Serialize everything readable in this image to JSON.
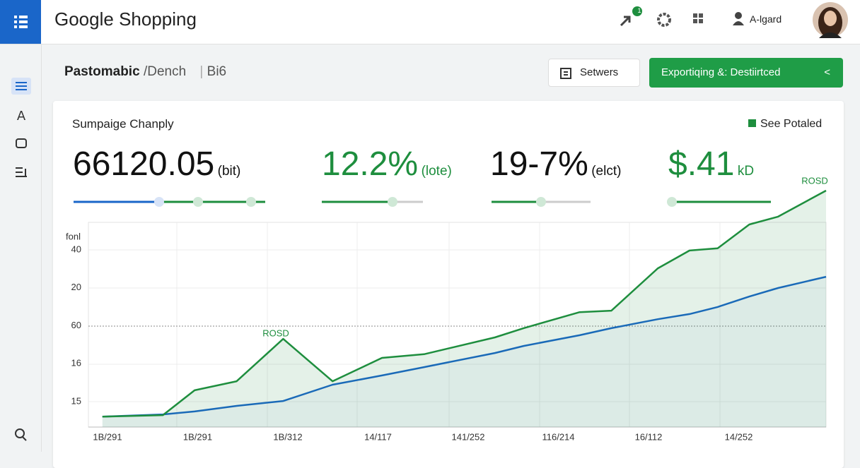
{
  "header": {
    "title": "Google Shopping",
    "badge": "1",
    "user": "A-lgard"
  },
  "breadcrumb": {
    "title": "Pastomabic",
    "sub": "/Dench",
    "tag": "Bi6"
  },
  "buttons": {
    "secondary": "Setwers",
    "primary": "Exportiqing &: Destiirtced"
  },
  "card": {
    "title": "Sumpaige Chanply",
    "legend": "See Potaled",
    "metrics": [
      {
        "value": "66120.05",
        "unit": "(bit)"
      },
      {
        "value": "12.2%",
        "unit": "(lote)"
      },
      {
        "value": "19-7%",
        "unit": "(elct)"
      },
      {
        "value": "$.41",
        "unit": "kD"
      }
    ]
  },
  "chart_data": {
    "type": "line",
    "y_title": "fonl",
    "y_labels": [
      "40",
      "20",
      "60",
      "16",
      "15"
    ],
    "x_labels": [
      "1B/291",
      "1B/291",
      "1B/312",
      "14/117",
      "141/252",
      "116/214",
      "16/112",
      "14/252"
    ],
    "x": [
      1.9,
      10.1,
      14.4,
      20.1,
      26.4,
      33.1,
      39.8,
      45.5,
      55.1,
      59.0,
      66.6,
      70.9,
      77.2,
      81.5,
      85.3,
      89.6,
      93.5,
      100
    ],
    "xlim": [
      0,
      100
    ],
    "ylim": [
      0,
      100
    ],
    "series": [
      {
        "color": "#1a66c9",
        "values": [
          4.3,
          5.2,
          6.4,
          8.7,
          10.7,
          17.4,
          21.2,
          24.6,
          30.4,
          33.3,
          37.7,
          40.6,
          44.3,
          46.4,
          49.3,
          53.6,
          57.1,
          61.7
        ]
      },
      {
        "color": "#1e8e3e",
        "values": [
          4.3,
          4.9,
          15.1,
          18.8,
          36.2,
          18.8,
          28.4,
          29.9,
          36.8,
          40.6,
          47.2,
          47.8,
          65.2,
          72.5,
          73.4,
          83.2,
          86.4,
          97.1
        ]
      }
    ],
    "annotations": [
      "ROSD",
      "ROSD"
    ]
  }
}
